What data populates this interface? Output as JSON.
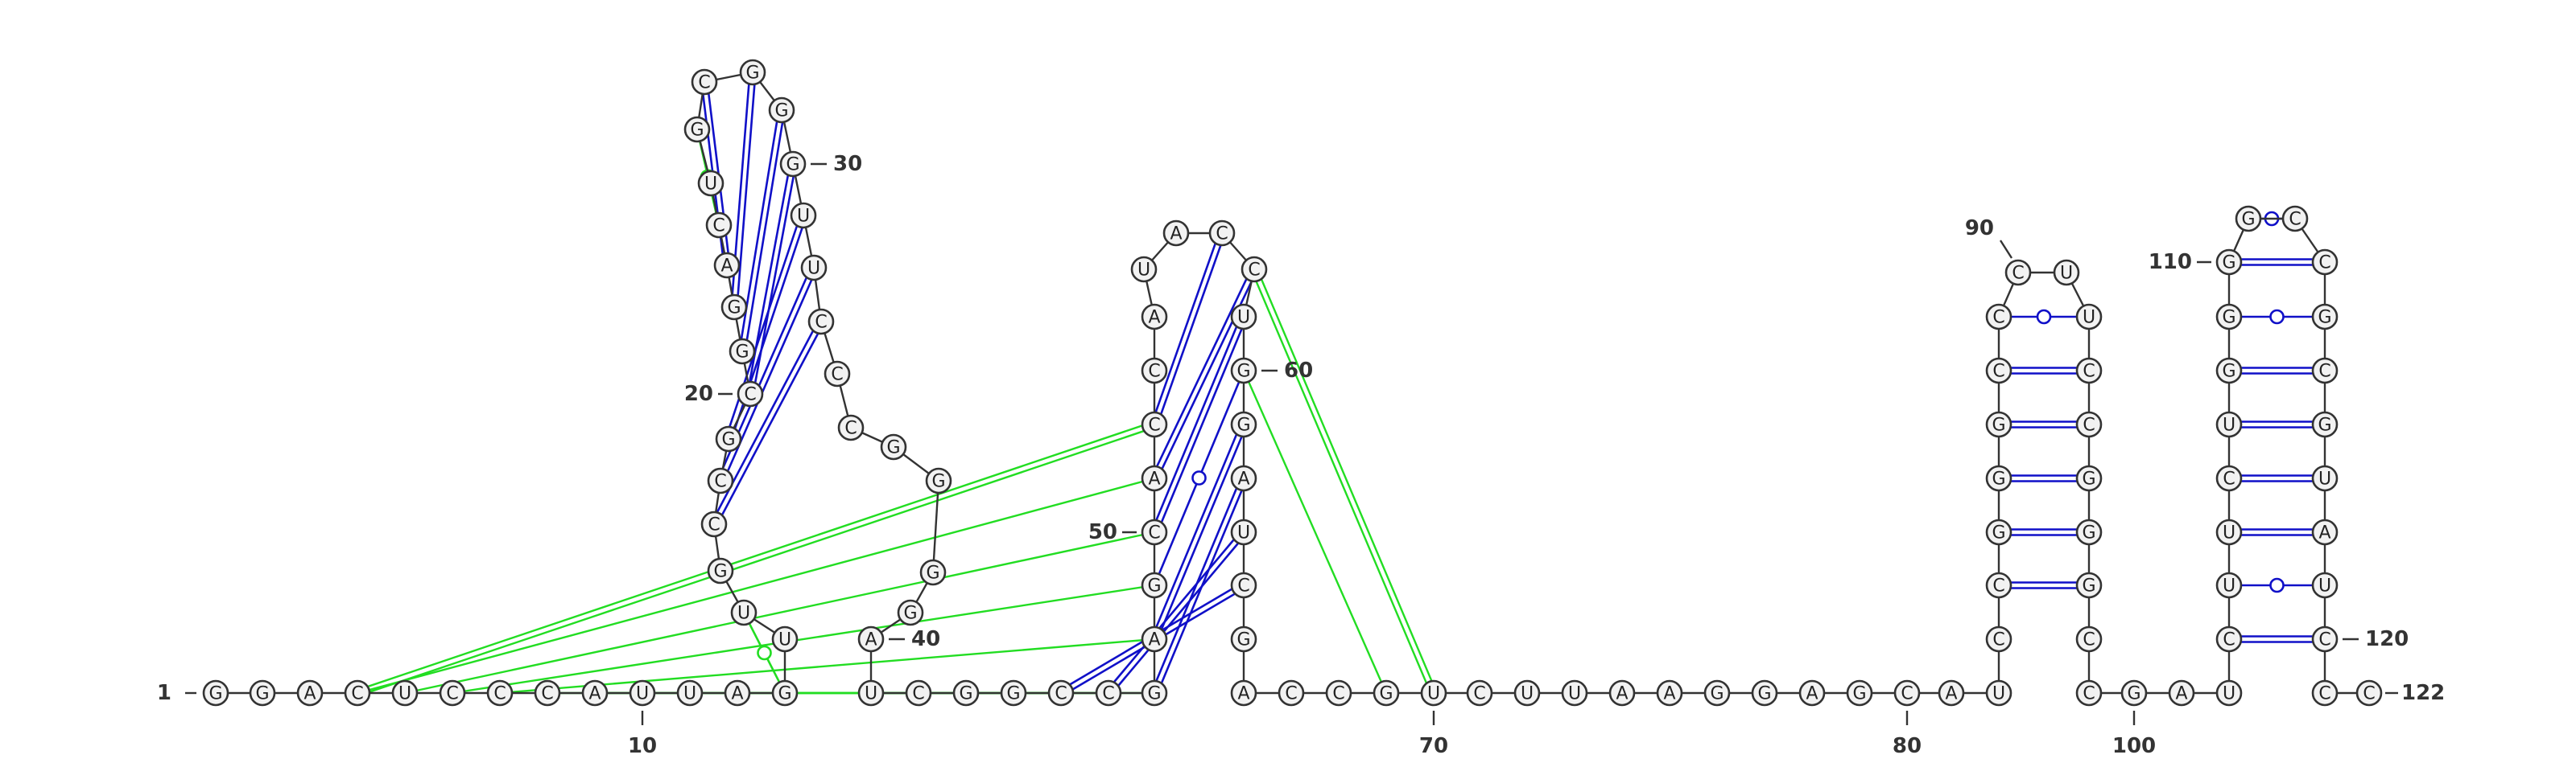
{
  "diagram": {
    "colors": {
      "watson_crick": "#1010c8",
      "wobble": "#1010c8",
      "tertiary": "#22dd22",
      "backbone": "#333333",
      "nucleotide_fill": "#f2f2f2"
    },
    "sequence": "GGACUCCCAUUAGUUGCCGCGGACUGCGGGUUCCCGGGGAUCGGCCGAGCACCAUACCUGGAUCGACCGUCUUAAGGAGCAUCCGGGCCCUUCCGGGCCGAUCUUCUGGGGCCGCGUAUCCCC",
    "numbers": [
      {
        "index": 1,
        "text": "1"
      },
      {
        "index": 10,
        "text": "10"
      },
      {
        "index": 20,
        "text": "20"
      },
      {
        "index": 30,
        "text": "30"
      },
      {
        "index": 40,
        "text": "40"
      },
      {
        "index": 50,
        "text": "50"
      },
      {
        "index": 60,
        "text": "60"
      },
      {
        "index": 70,
        "text": "70"
      },
      {
        "index": 80,
        "text": "80"
      },
      {
        "index": 90,
        "text": "90"
      },
      {
        "index": 100,
        "text": "100"
      },
      {
        "index": 110,
        "text": "110"
      },
      {
        "index": 120,
        "text": "120"
      },
      {
        "index": 122,
        "text": "122"
      }
    ],
    "pairs": [
      [
        17,
        33,
        "wc"
      ],
      [
        18,
        32,
        "wc"
      ],
      [
        19,
        31,
        "wc"
      ],
      [
        20,
        30,
        "wc"
      ],
      [
        21,
        29,
        "wc"
      ],
      [
        22,
        28,
        "wc"
      ],
      [
        23,
        27,
        "wc"
      ],
      [
        24,
        26,
        "tertiary-filled"
      ],
      [
        45,
        64,
        "wc"
      ],
      [
        46,
        63,
        "wc"
      ],
      [
        47,
        62,
        "wc"
      ],
      [
        48,
        61,
        "wc"
      ],
      [
        49,
        60,
        "wobble"
      ],
      [
        50,
        59,
        "wc"
      ],
      [
        51,
        58,
        "wc"
      ],
      [
        52,
        57,
        "wc"
      ],
      [
        84,
        97,
        "wc"
      ],
      [
        85,
        96,
        "wc"
      ],
      [
        86,
        95,
        "wc"
      ],
      [
        87,
        94,
        "wc"
      ],
      [
        88,
        93,
        "wc"
      ],
      [
        89,
        92,
        "wobble"
      ],
      [
        103,
        120,
        "wc"
      ],
      [
        104,
        119,
        "wobble"
      ],
      [
        105,
        118,
        "wc"
      ],
      [
        106,
        117,
        "wc"
      ],
      [
        107,
        116,
        "wc"
      ],
      [
        108,
        115,
        "wc"
      ],
      [
        109,
        114,
        "wobble"
      ],
      [
        110,
        113,
        "wc"
      ],
      [
        111,
        112,
        "wobble"
      ],
      [
        13,
        15,
        "tertiary-open"
      ],
      [
        4,
        52,
        "tertiary-double"
      ],
      [
        4,
        51,
        "tertiary"
      ],
      [
        5,
        50,
        "tertiary"
      ],
      [
        6,
        49,
        "tertiary"
      ],
      [
        7,
        48,
        "tertiary"
      ],
      [
        8,
        47,
        "tertiary"
      ],
      [
        9,
        46,
        "tertiary"
      ],
      [
        13,
        45,
        "tertiary"
      ],
      [
        58,
        70,
        "tertiary-double"
      ],
      [
        60,
        69,
        "tertiary"
      ]
    ]
  }
}
